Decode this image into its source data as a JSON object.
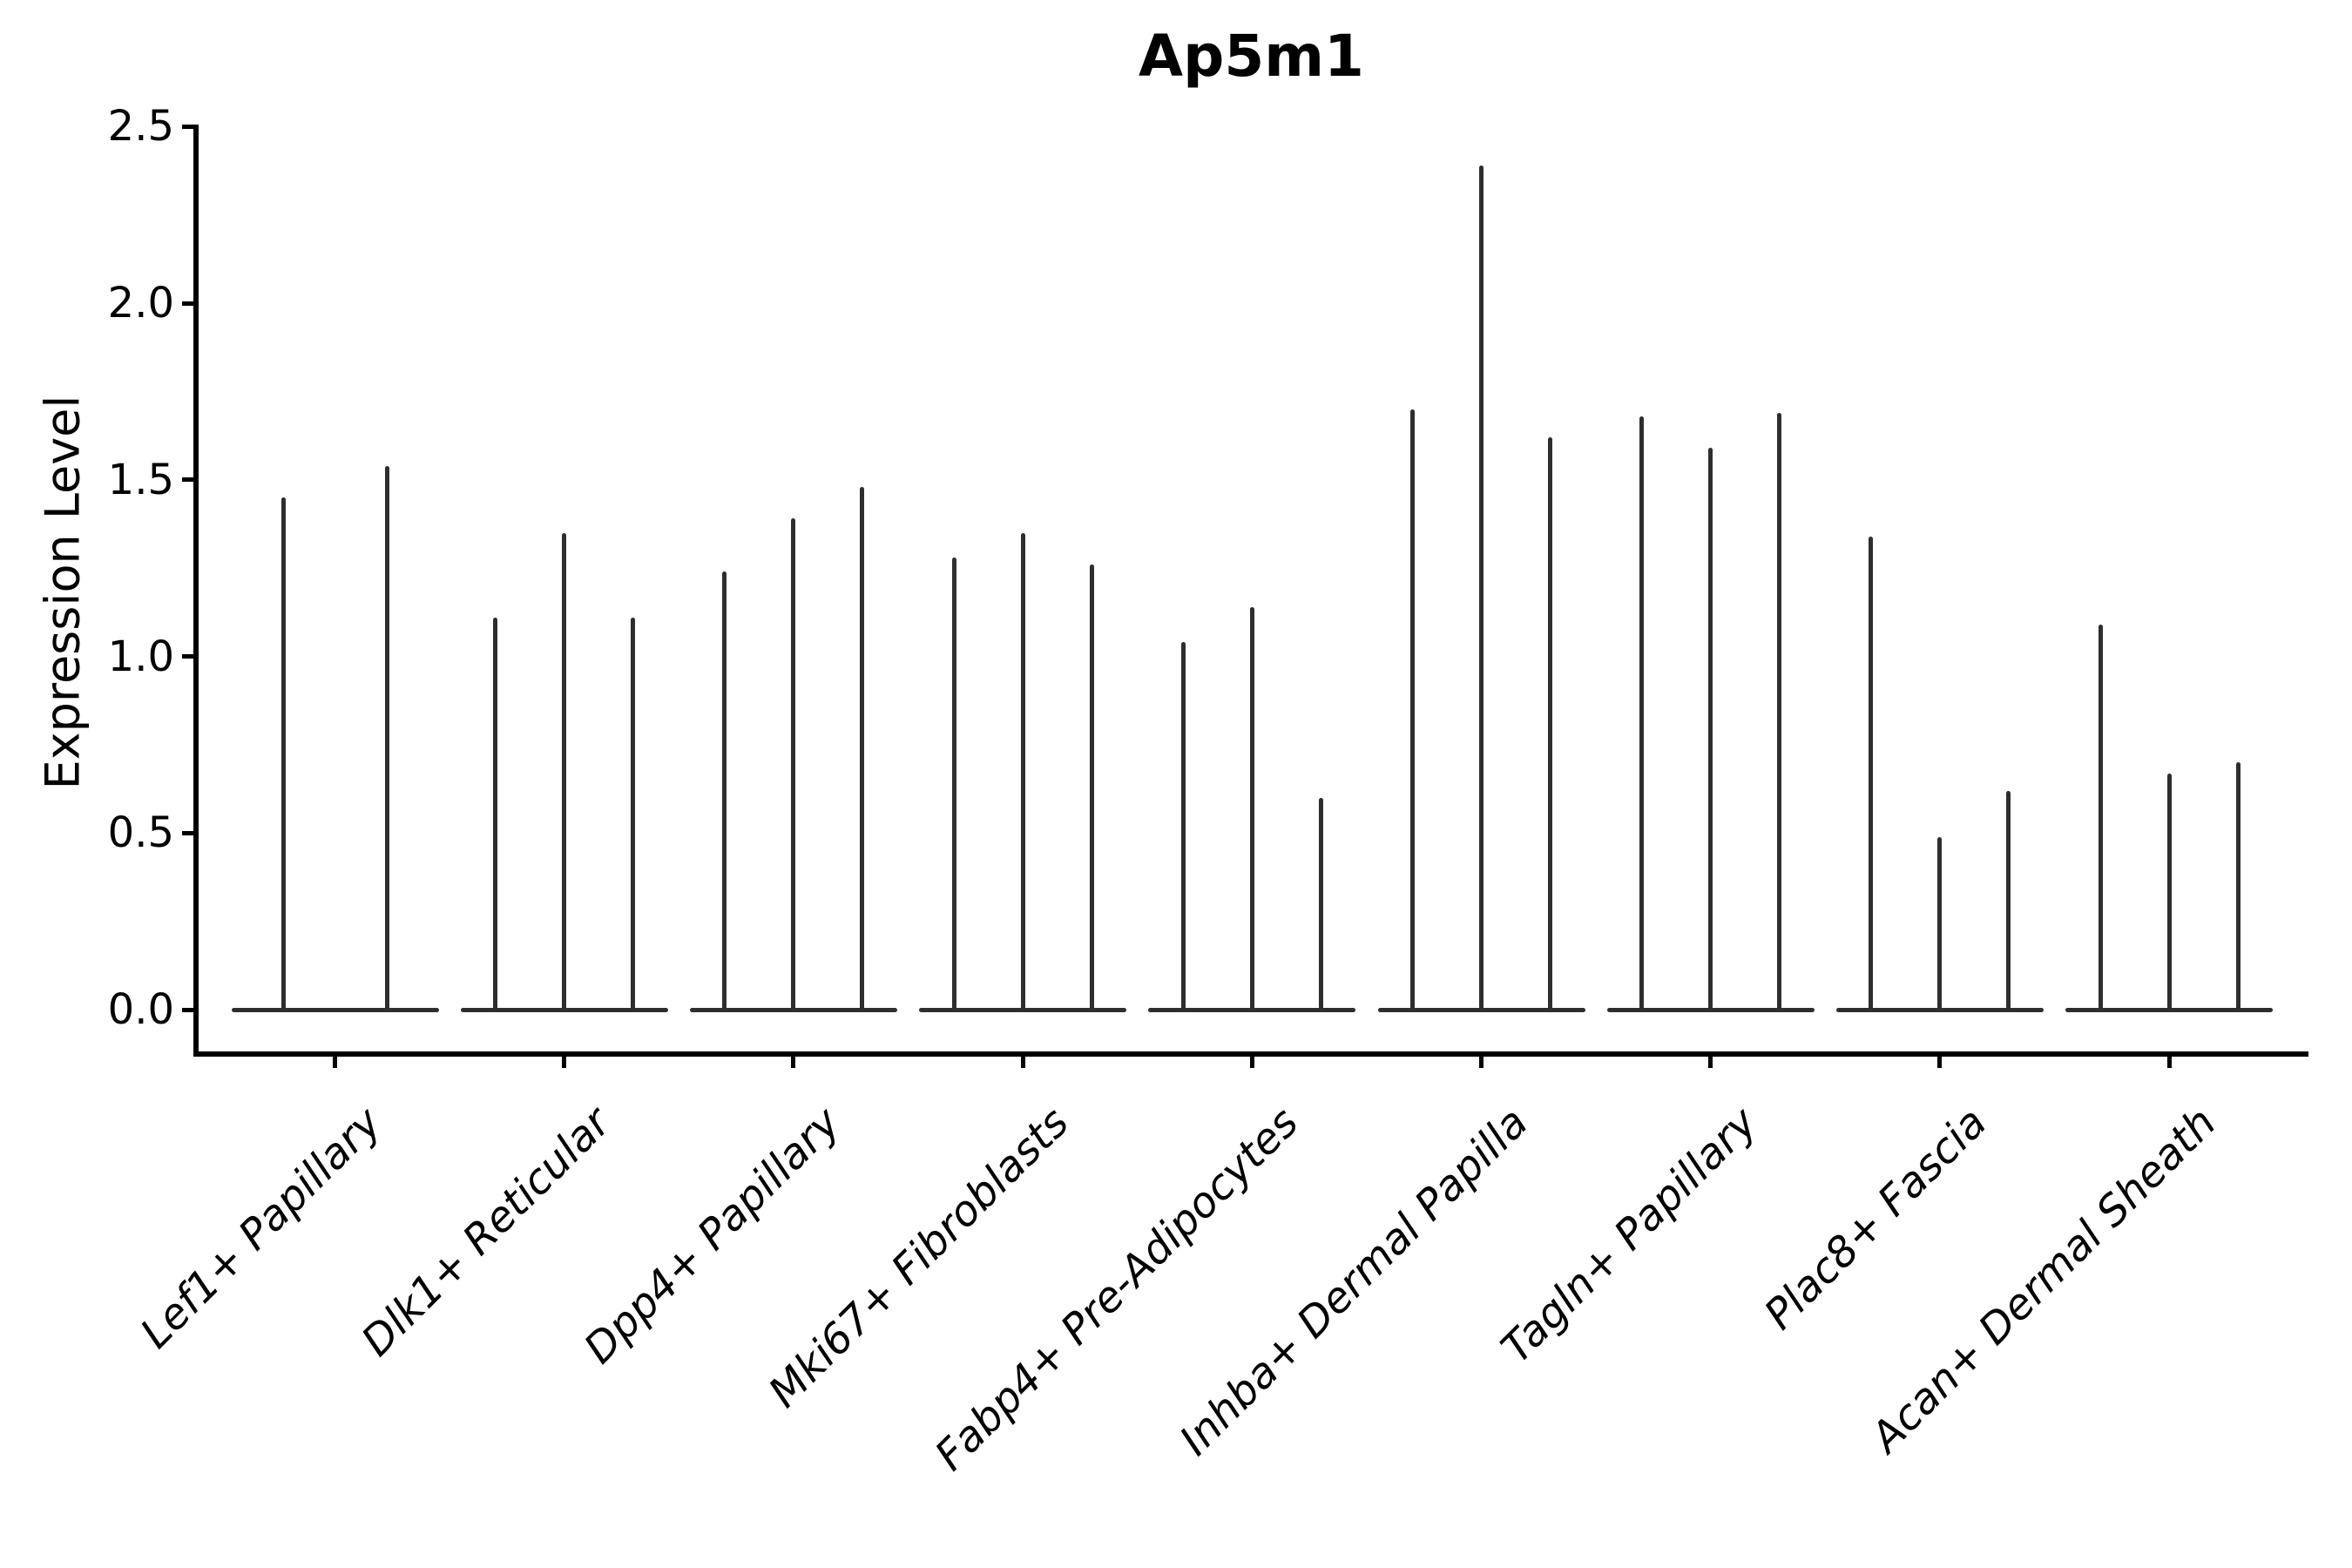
{
  "chart_data": {
    "type": "violin",
    "title": "Ap5m1",
    "xlabel": "",
    "ylabel": "Expression Level",
    "ylim": [
      0,
      2.5
    ],
    "yticks": [
      "0.0",
      "0.5",
      "1.0",
      "1.5",
      "2.0",
      "2.5"
    ],
    "grid": false,
    "legend": "none",
    "violin_color": "#2e2e2e",
    "axis_color": "#000000",
    "categories": [
      "Lef1+ Papillary",
      "Dlk1+ Reticular",
      "Dpp4+ Papillary",
      "Mki67+ Fibroblasts",
      "Fabp4+ Pre-Adipocytes",
      "Inhba+ Dermal Papilla",
      "Tagln+ Papillary",
      "Plac8+ Fascia",
      "Acan+ Dermal Sheath"
    ],
    "groups": [
      {
        "category": "Lef1+ Papillary",
        "violin_max_expression": [
          1.45,
          1.54
        ]
      },
      {
        "category": "Dlk1+ Reticular",
        "violin_max_expression": [
          1.11,
          1.35,
          1.11
        ]
      },
      {
        "category": "Dpp4+ Papillary",
        "violin_max_expression": [
          1.24,
          1.39,
          1.48
        ]
      },
      {
        "category": "Mki67+ Fibroblasts",
        "violin_max_expression": [
          1.28,
          1.35,
          1.26
        ]
      },
      {
        "category": "Fabp4+ Pre-Adipocytes",
        "violin_max_expression": [
          1.04,
          1.14,
          0.6
        ]
      },
      {
        "category": "Inhba+ Dermal Papilla",
        "violin_max_expression": [
          1.7,
          2.39,
          1.62
        ]
      },
      {
        "category": "Tagln+ Papillary",
        "violin_max_expression": [
          1.68,
          1.59,
          1.69
        ]
      },
      {
        "category": "Plac8+ Fascia",
        "violin_max_expression": [
          1.34,
          0.49,
          0.62
        ]
      },
      {
        "category": "Acan+ Dermal Sheath",
        "violin_max_expression": [
          1.09,
          0.67,
          0.7
        ]
      }
    ]
  }
}
